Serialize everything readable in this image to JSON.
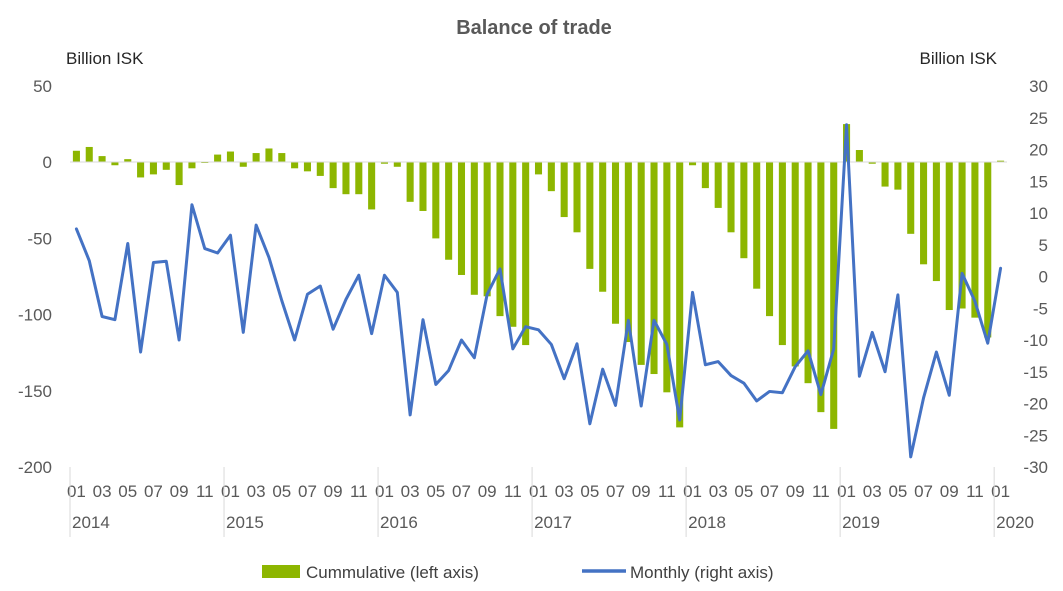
{
  "chart_data": {
    "type": "bar",
    "title": "Balance of trade",
    "left_axis_label": "Billion ISK",
    "right_axis_label": "Billion ISK",
    "left_ylim": [
      -200,
      50
    ],
    "left_yticks": [
      50,
      0,
      -50,
      -100,
      -150,
      -200
    ],
    "right_ylim": [
      -30,
      30
    ],
    "right_yticks": [
      30,
      25,
      20,
      15,
      10,
      5,
      0,
      -5,
      -10,
      -15,
      -20,
      -25,
      -30
    ],
    "x_month_labels": [
      "01",
      "03",
      "05",
      "07",
      "09",
      "11",
      "01",
      "03",
      "05",
      "07",
      "09",
      "11",
      "01",
      "03",
      "05",
      "07",
      "09",
      "11",
      "01",
      "03",
      "05",
      "07",
      "09",
      "11",
      "01",
      "03",
      "05",
      "07",
      "09",
      "11",
      "01",
      "03",
      "05",
      "07",
      "09",
      "11",
      "01"
    ],
    "year_labels": [
      "2014",
      "2015",
      "2016",
      "2017",
      "2018",
      "2019",
      "2020"
    ],
    "grid": false,
    "legend_position": "bottom",
    "series": [
      {
        "name": "Cummulative (left axis)",
        "kind": "bar",
        "axis": "left",
        "color": "#8db600",
        "values": [
          7.5,
          10,
          4,
          -2,
          2,
          -10,
          -8,
          -5,
          -15,
          -4,
          0,
          5,
          7,
          -3,
          6,
          9,
          6,
          -4,
          -6,
          -9,
          -17,
          -21,
          -21,
          -31,
          -1,
          -3,
          -26,
          -32,
          -50,
          -64,
          -74,
          -87,
          -88,
          -101,
          -108,
          -120,
          -8,
          -19,
          -36,
          -46,
          -70,
          -85,
          -106,
          -118,
          -133,
          -139,
          -151,
          -174,
          -2,
          -17,
          -30,
          -46,
          -63,
          -83,
          -101,
          -120,
          -134,
          -145,
          -164,
          -175,
          25,
          8,
          -1,
          -16,
          -18,
          -47,
          -67,
          -78,
          -97,
          -96,
          -102,
          -115,
          1
        ]
      },
      {
        "name": "Monthly (right axis)",
        "kind": "line",
        "axis": "right",
        "color": "#4472c4",
        "values": [
          7.5,
          2.5,
          -6.3,
          -6.8,
          5.2,
          -11.9,
          2.2,
          2.4,
          -10,
          11.3,
          4.4,
          3.7,
          6.5,
          -8.8,
          8.1,
          3,
          -3.8,
          -10,
          -2.8,
          -1.5,
          -8.3,
          -3.6,
          0.2,
          -9,
          0.2,
          -2.5,
          -21.8,
          -6.8,
          -17,
          -14.8,
          -10,
          -12.8,
          -2.8,
          1.2,
          -11.4,
          -7.9,
          -8.4,
          -10.7,
          -16.1,
          -10.6,
          -23.2,
          -14.6,
          -20.3,
          -6.9,
          -20.4,
          -6.9,
          -10.7,
          -22.6,
          -2.5,
          -13.9,
          -13.4,
          -15.6,
          -16.8,
          -19.6,
          -18.1,
          -18.3,
          -14.2,
          -11.7,
          -18.6,
          -11.4,
          23.9,
          -15.7,
          -8.8,
          -15,
          -2.9,
          -28.4,
          -19.1,
          -11.9,
          -18.7,
          0.5,
          -3.9,
          -10.5,
          1.3
        ]
      }
    ]
  }
}
